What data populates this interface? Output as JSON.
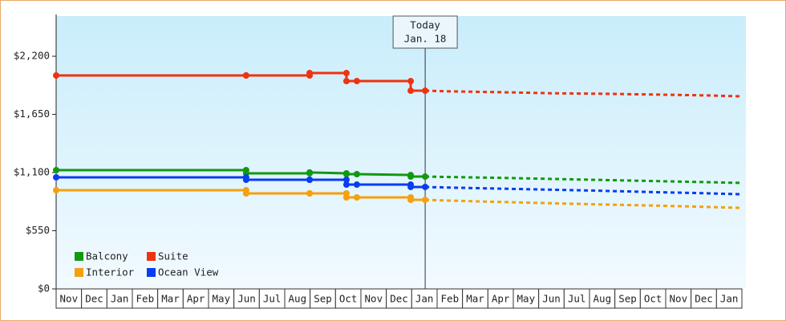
{
  "chart_data": {
    "type": "line",
    "x": [
      0,
      7.48,
      7.48,
      9.98,
      9.98,
      11.43,
      11.43,
      11.84,
      13.96,
      13.96,
      14.53,
      15.5,
      17.5,
      19.5,
      21.5,
      23.5,
      25.5,
      27
    ],
    "series": [
      {
        "name": "Balcony",
        "color": "#119911",
        "values": [
          1123,
          1123,
          1093,
          1093,
          1101,
          1093,
          1085,
          1085,
          1077,
          1062,
          1062,
          1058,
          1050,
          1040,
          1030,
          1020,
          1010,
          1002
        ]
      },
      {
        "name": "Suite",
        "color": "#ee3311",
        "values": [
          2018,
          2018,
          2018,
          2018,
          2041,
          2041,
          1965,
          1965,
          1965,
          1874,
          1874,
          1868,
          1860,
          1850,
          1845,
          1838,
          1830,
          1821
        ]
      },
      {
        "name": "Interior",
        "color": "#f5a00f",
        "values": [
          933,
          933,
          903,
          903,
          903,
          903,
          865,
          865,
          865,
          842,
          842,
          835,
          822,
          810,
          798,
          788,
          776,
          766
        ]
      },
      {
        "name": "Ocean View",
        "color": "#0a3cf0",
        "values": [
          1055,
          1055,
          1032,
          1032,
          1032,
          1032,
          986,
          986,
          986,
          964,
          964,
          958,
          948,
          938,
          928,
          915,
          905,
          895
        ]
      }
    ],
    "xlim": [
      0,
      27
    ],
    "xticks": [
      {
        "value": 0.5,
        "label": "Nov"
      },
      {
        "value": 1.5,
        "label": "Dec"
      },
      {
        "value": 2.5,
        "label": "Jan"
      },
      {
        "value": 3.5,
        "label": "Feb"
      },
      {
        "value": 4.5,
        "label": "Mar"
      },
      {
        "value": 5.5,
        "label": "Apr"
      },
      {
        "value": 6.5,
        "label": "May"
      },
      {
        "value": 7.5,
        "label": "Jun"
      },
      {
        "value": 8.5,
        "label": "Jul"
      },
      {
        "value": 9.5,
        "label": "Aug"
      },
      {
        "value": 10.5,
        "label": "Sep"
      },
      {
        "value": 11.5,
        "label": "Oct"
      },
      {
        "value": 12.5,
        "label": "Nov"
      },
      {
        "value": 13.5,
        "label": "Dec"
      },
      {
        "value": 14.5,
        "label": "Jan"
      },
      {
        "value": 15.5,
        "label": "Feb"
      },
      {
        "value": 16.5,
        "label": "Mar"
      },
      {
        "value": 17.5,
        "label": "Apr"
      },
      {
        "value": 18.5,
        "label": "May"
      },
      {
        "value": 19.5,
        "label": "Jun"
      },
      {
        "value": 20.5,
        "label": "Jul"
      },
      {
        "value": 21.5,
        "label": "Aug"
      },
      {
        "value": 22.5,
        "label": "Sep"
      },
      {
        "value": 23.5,
        "label": "Oct"
      },
      {
        "value": 24.5,
        "label": "Nov"
      },
      {
        "value": 25.5,
        "label": "Dec"
      },
      {
        "value": 26.5,
        "label": "Jan"
      }
    ],
    "ylim": [
      0,
      2580
    ],
    "yticks": [
      {
        "value": 0,
        "label": "$0"
      },
      {
        "value": 550,
        "label": "$550"
      },
      {
        "value": 1100,
        "label": "$1,100"
      },
      {
        "value": 1650,
        "label": "$1,650"
      },
      {
        "value": 2200,
        "label": "$2,200"
      }
    ],
    "today_marker": {
      "lines": [
        "Today",
        "Jan. 18"
      ],
      "x": 14.53
    },
    "legend": "bottom-left"
  }
}
